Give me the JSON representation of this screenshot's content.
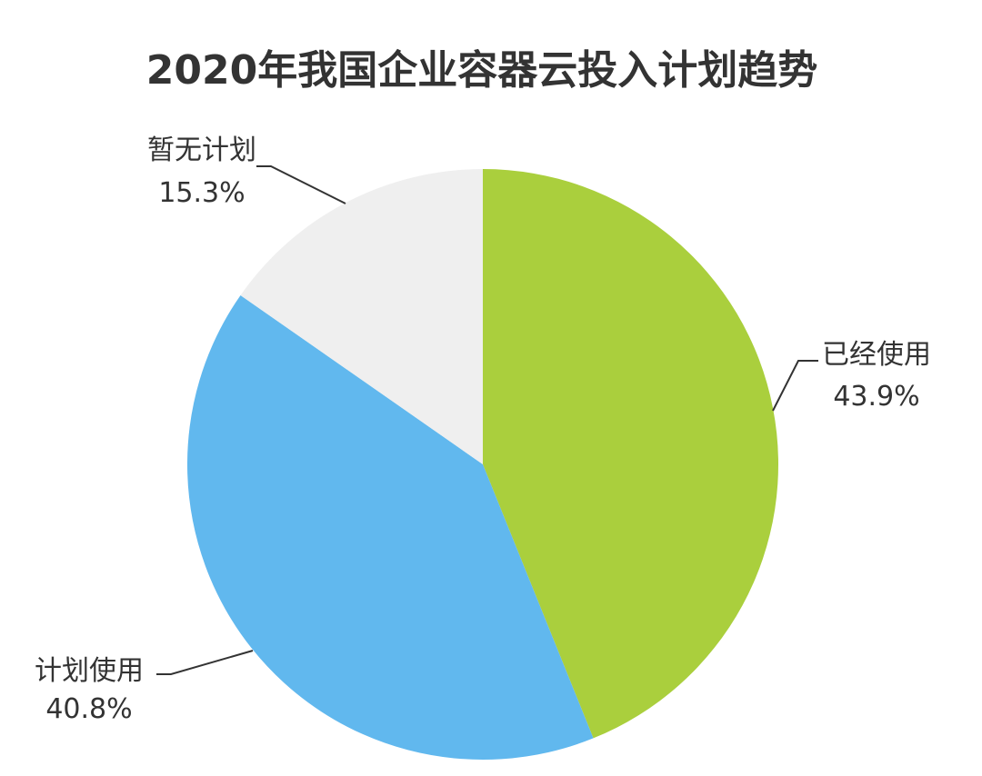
{
  "chart_data": {
    "type": "pie",
    "title": "2020年我国企业容器云投入计划趋势",
    "slices": [
      {
        "label": "已经使用",
        "value": 43.9,
        "display": "43.9%",
        "color": "#aacf3d"
      },
      {
        "label": "计划使用",
        "value": 40.8,
        "display": "40.8%",
        "color": "#61b8ee"
      },
      {
        "label": "暂无计划",
        "value": 15.3,
        "display": "15.3%",
        "color": "#efefef"
      }
    ],
    "start_angle": "12 o'clock",
    "direction": "clockwise",
    "legend": "none"
  }
}
